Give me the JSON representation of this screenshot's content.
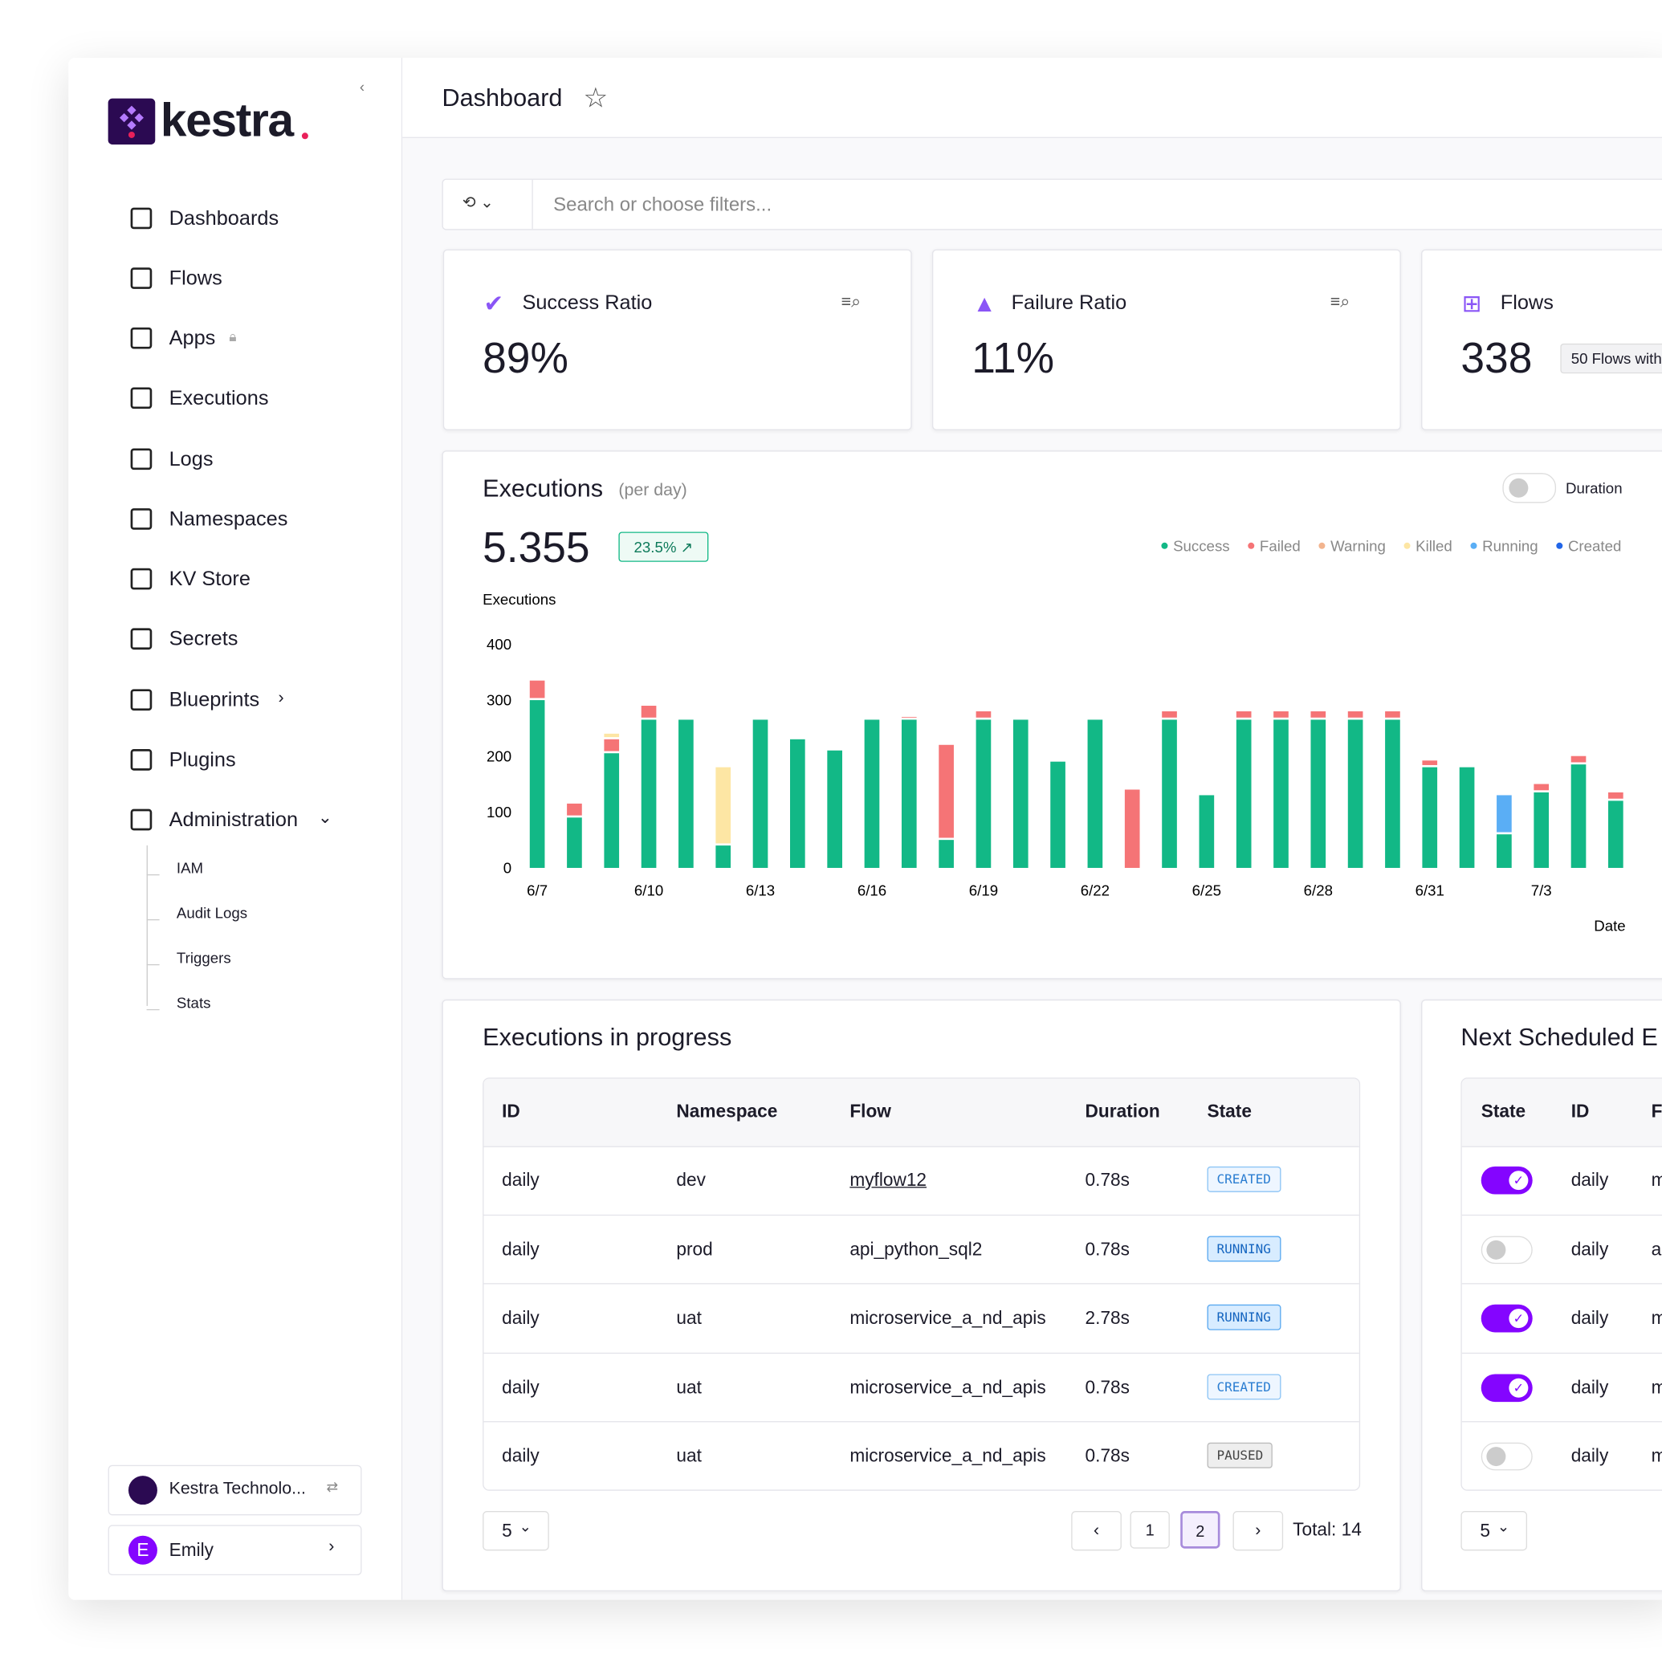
{
  "sidebar": {
    "brand": "kestra",
    "nav": [
      "Dashboards",
      "Flows",
      "Apps",
      "Executions",
      "Logs",
      "Namespaces",
      "KV Store",
      "Secrets",
      "Blueprints",
      "Plugins",
      "Administration"
    ],
    "admin_sub": [
      "IAM",
      "Audit Logs",
      "Triggers",
      "Stats"
    ],
    "tenant": "Kestra Technolo...",
    "user": {
      "initial": "E",
      "name": "Emily"
    }
  },
  "header": {
    "title": "Dashboard"
  },
  "search": {
    "placeholder": "Search or choose filters..."
  },
  "cards": [
    {
      "title": "Success Ratio",
      "value": "89%"
    },
    {
      "title": "Failure Ratio",
      "value": "11%"
    },
    {
      "title": "Flows",
      "value": "338",
      "badge": "50 Flows with"
    }
  ],
  "executions_panel": {
    "title": "Executions",
    "subtitle": "(per day)",
    "total": "5.355",
    "change": "23.5%",
    "toggle_label": "Duration"
  },
  "chart_data": {
    "type": "bar",
    "stacked": true,
    "y_label": "Executions",
    "x_label": "Date",
    "categories": [
      "6/7",
      null,
      null,
      "6/10",
      null,
      null,
      "6/13",
      null,
      null,
      "6/16",
      null,
      null,
      "6/19",
      null,
      null,
      "6/22",
      null,
      null,
      "6/25",
      null,
      null,
      "6/28",
      null,
      null,
      "6/31",
      null,
      null,
      "7/3",
      null,
      null
    ],
    "series": [
      {
        "name": "Success",
        "color": "#12b886",
        "values": [
          300,
          90,
          205,
          265,
          265,
          40,
          265,
          230,
          210,
          265,
          265,
          50,
          265,
          265,
          190,
          265,
          0,
          265,
          130,
          265,
          265,
          265,
          265,
          265,
          180,
          180,
          60,
          135,
          185,
          120
        ]
      },
      {
        "name": "Failed",
        "color": "#f57476",
        "values": [
          35,
          25,
          25,
          25,
          0,
          0,
          0,
          0,
          0,
          0,
          5,
          170,
          15,
          0,
          0,
          0,
          140,
          15,
          0,
          15,
          15,
          15,
          15,
          15,
          12,
          0,
          0,
          15,
          15,
          15
        ]
      },
      {
        "name": "Warning",
        "color": "#f2b48e",
        "values": [
          0,
          0,
          0,
          0,
          0,
          0,
          0,
          0,
          0,
          0,
          0,
          0,
          0,
          0,
          0,
          0,
          0,
          0,
          0,
          0,
          0,
          0,
          0,
          0,
          0,
          0,
          0,
          0,
          0,
          0
        ]
      },
      {
        "name": "Killed",
        "color": "#fde6a4",
        "values": [
          0,
          0,
          10,
          0,
          0,
          140,
          0,
          0,
          0,
          0,
          0,
          0,
          0,
          0,
          0,
          0,
          0,
          0,
          0,
          0,
          0,
          0,
          0,
          0,
          0,
          0,
          0,
          0,
          0,
          0
        ]
      },
      {
        "name": "Running",
        "color": "#5aaef5",
        "values": [
          0,
          0,
          0,
          0,
          0,
          0,
          0,
          0,
          0,
          0,
          0,
          0,
          0,
          0,
          0,
          0,
          0,
          0,
          0,
          0,
          0,
          0,
          0,
          0,
          0,
          0,
          70,
          0,
          0,
          0
        ]
      },
      {
        "name": "Created",
        "color": "#2266e8",
        "values": [
          0,
          0,
          0,
          0,
          0,
          0,
          0,
          0,
          0,
          0,
          0,
          0,
          0,
          0,
          0,
          0,
          0,
          0,
          0,
          0,
          0,
          0,
          0,
          0,
          0,
          0,
          0,
          0,
          0,
          0
        ]
      }
    ],
    "ylim": [
      0,
      400
    ],
    "yticks": [
      0,
      100,
      200,
      300,
      400
    ],
    "grid": false
  },
  "in_progress": {
    "title": "Executions in progress",
    "columns": [
      "ID",
      "Namespace",
      "Flow",
      "Duration",
      "State"
    ],
    "rows": [
      [
        "daily",
        "dev",
        "myflow12",
        "0.78s",
        "CREATED"
      ],
      [
        "daily",
        "prod",
        "api_python_sql2",
        "0.78s",
        "RUNNING"
      ],
      [
        "daily",
        "uat",
        "microservice_a_nd_apis",
        "2.78s",
        "RUNNING"
      ],
      [
        "daily",
        "uat",
        "microservice_a_nd_apis",
        "0.78s",
        "CREATED"
      ],
      [
        "daily",
        "uat",
        "microservice_a_nd_apis",
        "0.78s",
        "PAUSED"
      ]
    ],
    "page_size": "5",
    "pages": [
      "1",
      "2"
    ],
    "total": "Total: 14"
  },
  "scheduled": {
    "title": "Next Scheduled E",
    "columns": [
      "State",
      "ID",
      "F"
    ],
    "enabled": [
      true,
      false,
      true,
      true,
      false
    ],
    "rows": [
      [
        "daily",
        "m"
      ],
      [
        "daily",
        "a"
      ],
      [
        "daily",
        "m"
      ],
      [
        "daily",
        "m"
      ],
      [
        "daily",
        "m"
      ]
    ],
    "page_size": "5"
  }
}
